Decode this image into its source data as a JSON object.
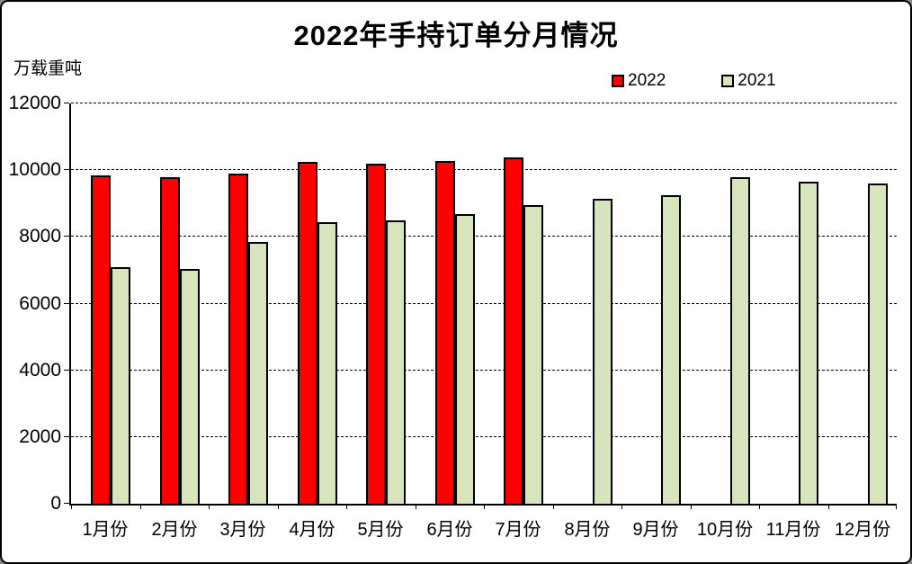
{
  "title": "2022年手持订单分月情况",
  "unit_label": "万载重吨",
  "legend": {
    "items": [
      {
        "label": "2022",
        "color": "#FF0000"
      },
      {
        "label": "2021",
        "color": "#D8E4BC"
      }
    ],
    "position": "top-right"
  },
  "colors": {
    "series_2022": "#FF0000",
    "series_2021": "#D8E4BC",
    "bar_border": "#000000",
    "gridline": "#000000",
    "background": "#FFFFFF"
  },
  "chart_data": {
    "type": "bar",
    "title": "2022年手持订单分月情况",
    "ylabel": "万载重吨",
    "xlabel": "",
    "categories": [
      "1月份",
      "2月份",
      "3月份",
      "4月份",
      "5月份",
      "6月份",
      "7月份",
      "8月份",
      "9月份",
      "10月份",
      "11月份",
      "12月份"
    ],
    "series": [
      {
        "name": "2022",
        "color": "#FF0000",
        "values": [
          9850,
          9800,
          9900,
          10250,
          10200,
          10280,
          10370,
          null,
          null,
          null,
          null,
          null
        ]
      },
      {
        "name": "2021",
        "color": "#D8E4BC",
        "values": [
          7100,
          7050,
          7850,
          8450,
          8500,
          8670,
          8950,
          9150,
          9250,
          9800,
          9650,
          9600
        ]
      }
    ],
    "ylim": [
      0,
      12000
    ],
    "yticks": [
      0,
      2000,
      4000,
      6000,
      8000,
      10000,
      12000
    ],
    "grid": "horizontal-dashed",
    "legend_position": "top-right"
  }
}
